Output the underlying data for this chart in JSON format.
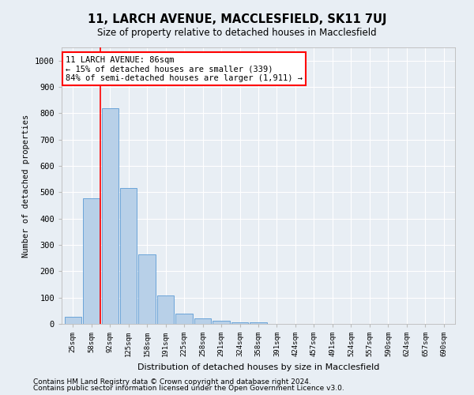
{
  "title": "11, LARCH AVENUE, MACCLESFIELD, SK11 7UJ",
  "subtitle": "Size of property relative to detached houses in Macclesfield",
  "xlabel": "Distribution of detached houses by size in Macclesfield",
  "ylabel": "Number of detached properties",
  "footnote1": "Contains HM Land Registry data © Crown copyright and database right 2024.",
  "footnote2": "Contains public sector information licensed under the Open Government Licence v3.0.",
  "bar_labels": [
    "25sqm",
    "58sqm",
    "92sqm",
    "125sqm",
    "158sqm",
    "191sqm",
    "225sqm",
    "258sqm",
    "291sqm",
    "324sqm",
    "358sqm",
    "391sqm",
    "424sqm",
    "457sqm",
    "491sqm",
    "524sqm",
    "557sqm",
    "590sqm",
    "624sqm",
    "657sqm",
    "690sqm"
  ],
  "bar_values": [
    28,
    478,
    820,
    515,
    265,
    108,
    38,
    22,
    12,
    5,
    5,
    0,
    0,
    0,
    0,
    0,
    0,
    0,
    0,
    0,
    0
  ],
  "bar_color": "#b8d0e8",
  "bar_edge_color": "#5b9bd5",
  "ylim": [
    0,
    1050
  ],
  "yticks": [
    0,
    100,
    200,
    300,
    400,
    500,
    600,
    700,
    800,
    900,
    1000
  ],
  "red_line_x": 1.5,
  "annotation_text": "11 LARCH AVENUE: 86sqm\n← 15% of detached houses are smaller (339)\n84% of semi-detached houses are larger (1,911) →",
  "bg_color": "#e8eef4",
  "grid_color": "#ffffff"
}
